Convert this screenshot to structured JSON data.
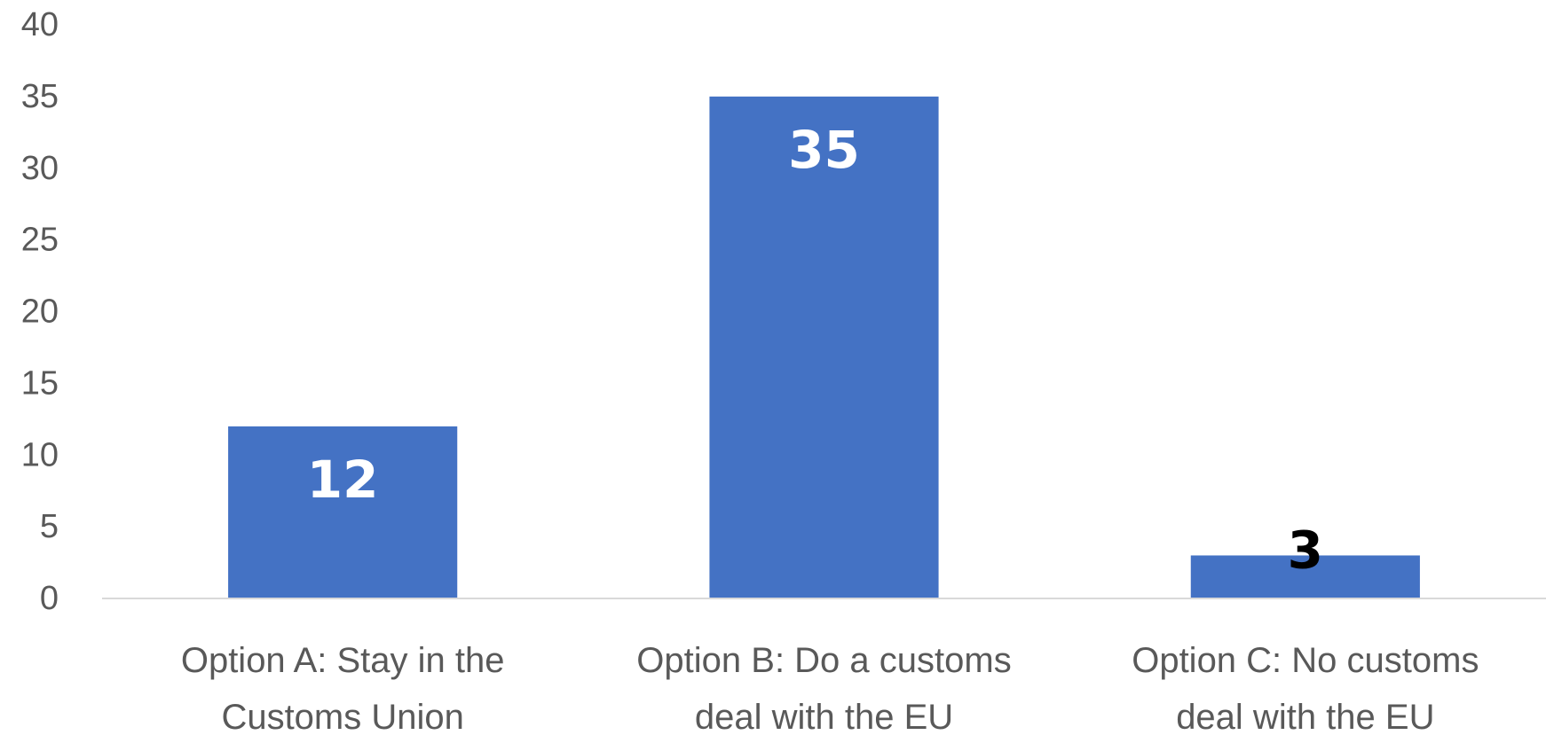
{
  "chart_data": {
    "type": "bar",
    "categories": [
      [
        "Option A: Stay in the",
        "Customs Union"
      ],
      [
        "Option B: Do a customs",
        "deal with the EU"
      ],
      [
        "Option C: No customs",
        "deal with the EU"
      ]
    ],
    "values": [
      12,
      35,
      3
    ],
    "data_labels": [
      "12",
      "35",
      "3"
    ],
    "ylim": [
      0,
      40
    ],
    "yticks": [
      "0",
      "5",
      "10",
      "15",
      "20",
      "25",
      "30",
      "35",
      "40"
    ],
    "grid": false,
    "legend": "none",
    "colors": {
      "bar": "#4472C4",
      "label_inside": "#FFFFFF",
      "label_outside": "#000000",
      "axis": "#D9D9D9",
      "tick_text": "#595959"
    }
  }
}
